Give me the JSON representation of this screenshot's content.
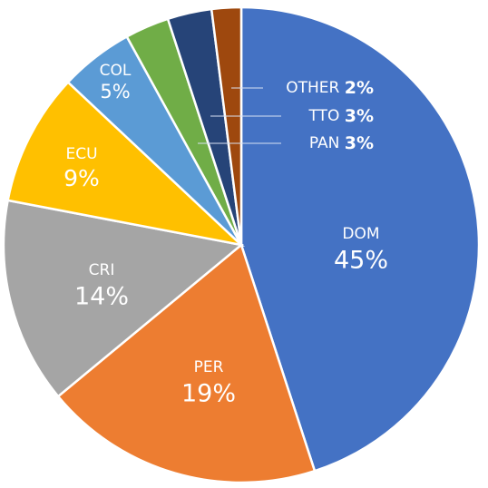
{
  "chart_data": {
    "type": "pie",
    "categories": [
      "DOM",
      "PER",
      "CRI",
      "ECU",
      "COL",
      "PAN",
      "TTO",
      "OTHER"
    ],
    "values": [
      45,
      19,
      14,
      9,
      5,
      3,
      3,
      2
    ],
    "value_labels": [
      "45%",
      "19%",
      "14%",
      "9%",
      "5%",
      "3%",
      "3%",
      "2%"
    ],
    "colors": [
      "#4472c4",
      "#ed7d31",
      "#a5a5a5",
      "#ffc000",
      "#5b9bd5",
      "#70ad47",
      "#264478",
      "#9e480e"
    ]
  }
}
